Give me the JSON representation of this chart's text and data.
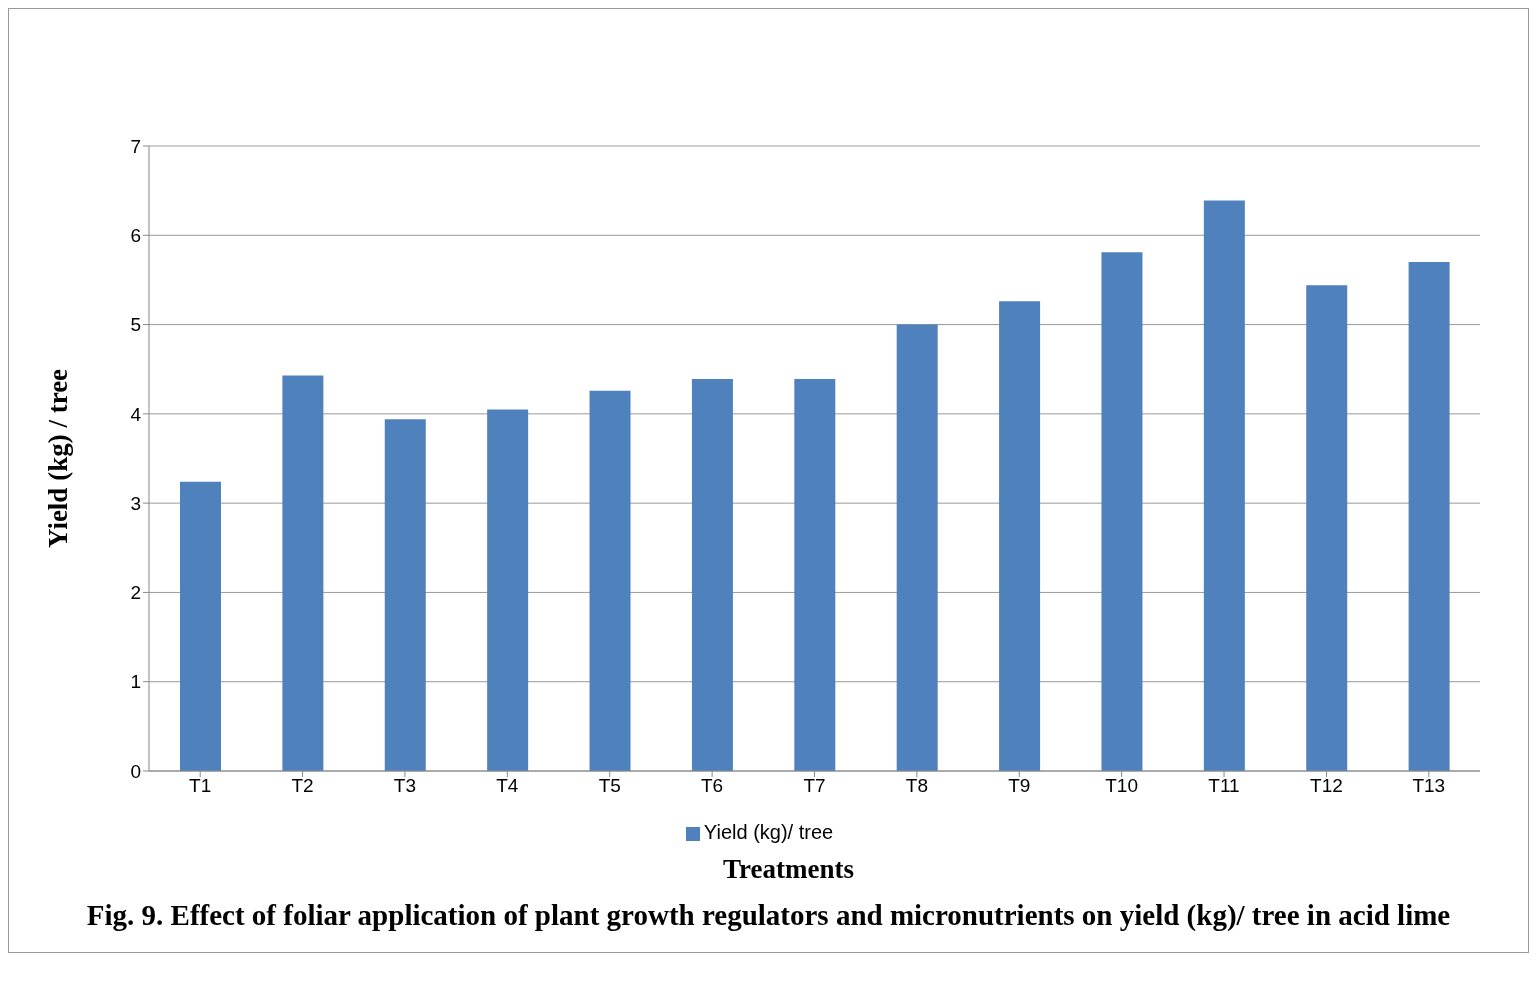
{
  "chart_data": {
    "type": "bar",
    "title": "Fig. 9. Effect of foliar application of  plant growth regulators and micronutrients on yield (kg)/ tree in acid lime",
    "xlabel": "Treatments",
    "ylabel": "Yield  (kg) / tree",
    "categories": [
      "T1",
      "T2",
      "T3",
      "T4",
      "T5",
      "T6",
      "T7",
      "T8",
      "T9",
      "T10",
      "T11",
      "T12",
      "T13"
    ],
    "series": [
      {
        "name": "Yield (kg)/ tree",
        "color": "#4f81bd",
        "values": [
          3.24,
          4.43,
          3.94,
          4.05,
          4.26,
          4.39,
          4.39,
          5.0,
          5.26,
          5.81,
          6.39,
          5.44,
          5.7
        ]
      }
    ],
    "ylim": [
      0,
      7
    ],
    "yticks": [
      0,
      1,
      2,
      3,
      4,
      5,
      6,
      7
    ],
    "grid": "y",
    "legend": "bottom"
  }
}
